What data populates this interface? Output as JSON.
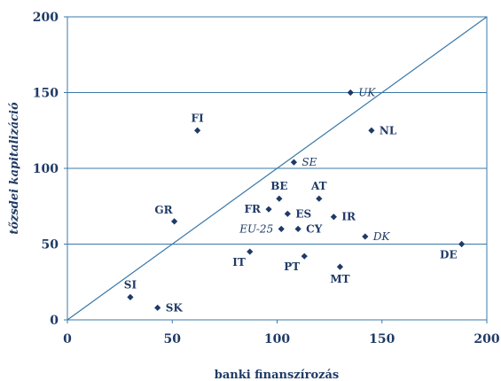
{
  "chart_data": {
    "type": "scatter",
    "xlabel": "banki finanszírozás",
    "ylabel": "tőzsdei kapitalizáció",
    "xlim": [
      0,
      200
    ],
    "ylim": [
      0,
      200
    ],
    "x_ticks": [
      "0",
      "50",
      "100",
      "150",
      "200"
    ],
    "y_ticks": [
      "0",
      "50",
      "100",
      "150",
      "200"
    ],
    "grid": "horizontal",
    "reference_line": "y = x",
    "marker_color": "#1f3a66",
    "line_color": "#3a78a8",
    "points": [
      {
        "label": "UK",
        "x": 135,
        "y": 150,
        "italic": true,
        "pos": "right"
      },
      {
        "label": "FI",
        "x": 62,
        "y": 125,
        "italic": false,
        "pos": "above"
      },
      {
        "label": "NL",
        "x": 145,
        "y": 125,
        "italic": false,
        "pos": "right"
      },
      {
        "label": "SE",
        "x": 108,
        "y": 104,
        "italic": true,
        "pos": "right"
      },
      {
        "label": "BE",
        "x": 101,
        "y": 80,
        "italic": false,
        "pos": "above"
      },
      {
        "label": "AT",
        "x": 120,
        "y": 80,
        "italic": false,
        "pos": "above"
      },
      {
        "label": "FR",
        "x": 96,
        "y": 73,
        "italic": false,
        "pos": "left"
      },
      {
        "label": "ES",
        "x": 105,
        "y": 70,
        "italic": false,
        "pos": "right"
      },
      {
        "label": "IR",
        "x": 127,
        "y": 68,
        "italic": false,
        "pos": "right"
      },
      {
        "label": "GR",
        "x": 51,
        "y": 65,
        "italic": false,
        "pos": "aboveleft"
      },
      {
        "label": "EU-25",
        "x": 102,
        "y": 60,
        "italic": true,
        "pos": "left"
      },
      {
        "label": "CY",
        "x": 110,
        "y": 60,
        "italic": false,
        "pos": "right"
      },
      {
        "label": "DK",
        "x": 142,
        "y": 55,
        "italic": true,
        "pos": "right"
      },
      {
        "label": "DE",
        "x": 188,
        "y": 50,
        "italic": false,
        "pos": "belowleft"
      },
      {
        "label": "IT",
        "x": 87,
        "y": 45,
        "italic": false,
        "pos": "belowleft"
      },
      {
        "label": "PT",
        "x": 113,
        "y": 42,
        "italic": false,
        "pos": "belowleft"
      },
      {
        "label": "MT",
        "x": 130,
        "y": 35,
        "italic": false,
        "pos": "below"
      },
      {
        "label": "SI",
        "x": 30,
        "y": 15,
        "italic": false,
        "pos": "above"
      },
      {
        "label": "SK",
        "x": 43,
        "y": 8,
        "italic": false,
        "pos": "right"
      }
    ]
  }
}
